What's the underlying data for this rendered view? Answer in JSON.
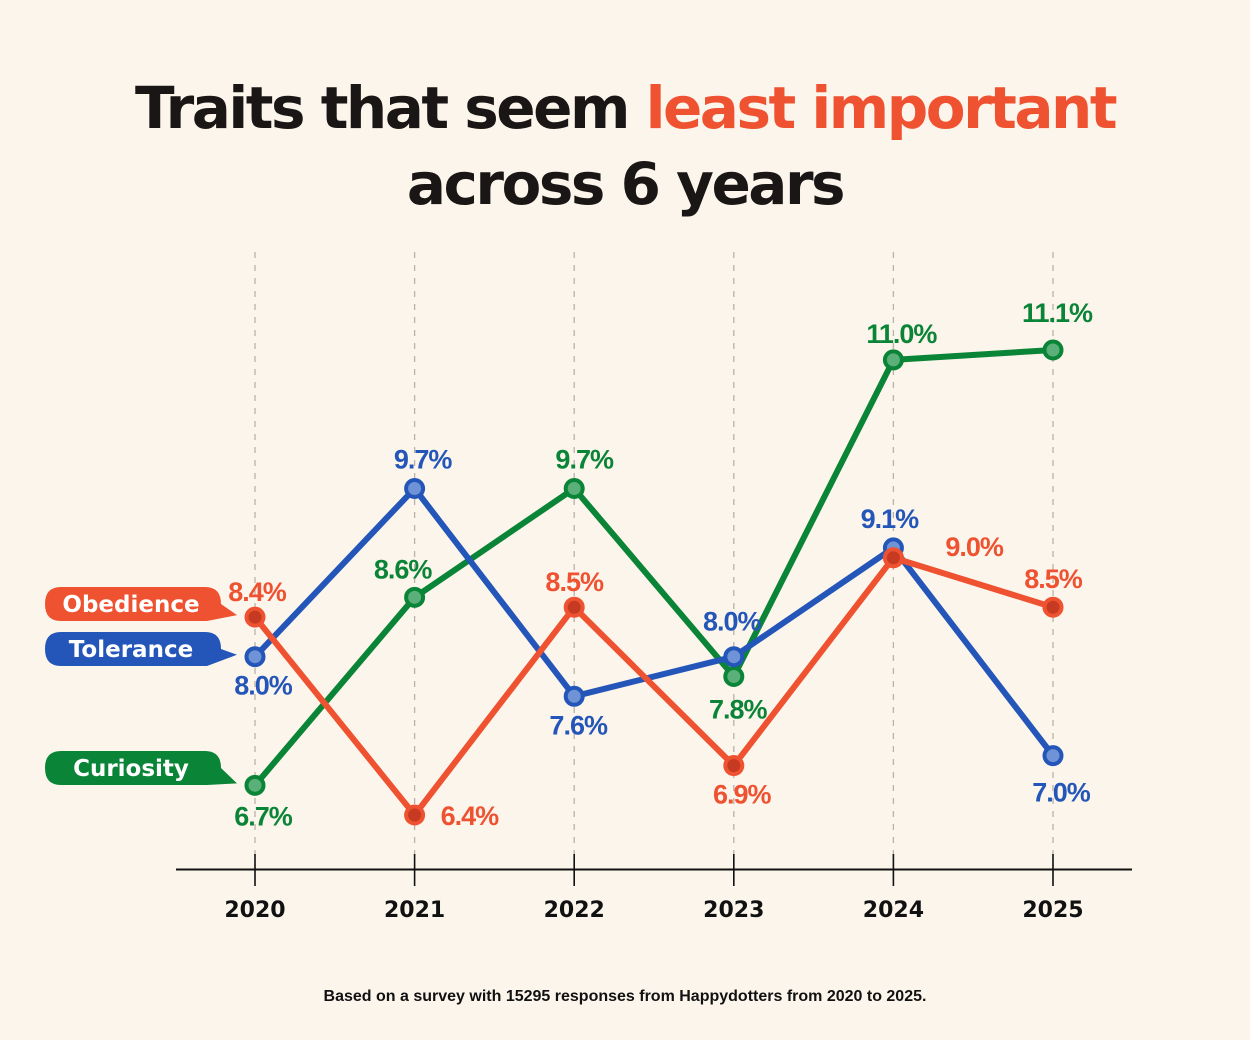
{
  "title": {
    "line1_prefix": "Traits that seem ",
    "line1_highlight": "least important",
    "line2": "across 6 years",
    "highlight_color": "#ef5230"
  },
  "footnote": "Based on a survey with 15295 responses from Happydotters from 2020 to 2025.",
  "chart_data": {
    "type": "line",
    "title": "Traits that seem least important across 6 years",
    "xlabel": "",
    "ylabel": "",
    "x": [
      "2020",
      "2021",
      "2022",
      "2023",
      "2024",
      "2025"
    ],
    "ylim": [
      6.4,
      11.1
    ],
    "grid": "vertical dashed",
    "legend": "left, labels attached to first points",
    "value_suffix": "%",
    "series": [
      {
        "name": "Obedience",
        "color": "#ef5230",
        "dot_color": "#c73a22",
        "values": [
          8.4,
          6.4,
          8.5,
          6.9,
          9.0,
          8.5
        ],
        "labels": [
          "8.4%",
          "6.4%",
          "8.5%",
          "6.9%",
          "9.0%",
          "8.5%"
        ]
      },
      {
        "name": "Tolerance",
        "color": "#2356b8",
        "dot_color": "#6f93d6",
        "values": [
          8.0,
          9.7,
          7.6,
          8.0,
          9.1,
          7.0
        ],
        "labels": [
          "8.0%",
          "9.7%",
          "7.6%",
          "8.0%",
          "9.1%",
          "7.0%"
        ]
      },
      {
        "name": "Curiosity",
        "color": "#0a8436",
        "dot_color": "#5bb07a",
        "values": [
          6.7,
          8.6,
          9.7,
          7.8,
          11.0,
          11.1
        ],
        "labels": [
          "6.7%",
          "8.6%",
          "9.7%",
          "7.8%",
          "11.0%",
          "11.1%"
        ]
      }
    ]
  }
}
